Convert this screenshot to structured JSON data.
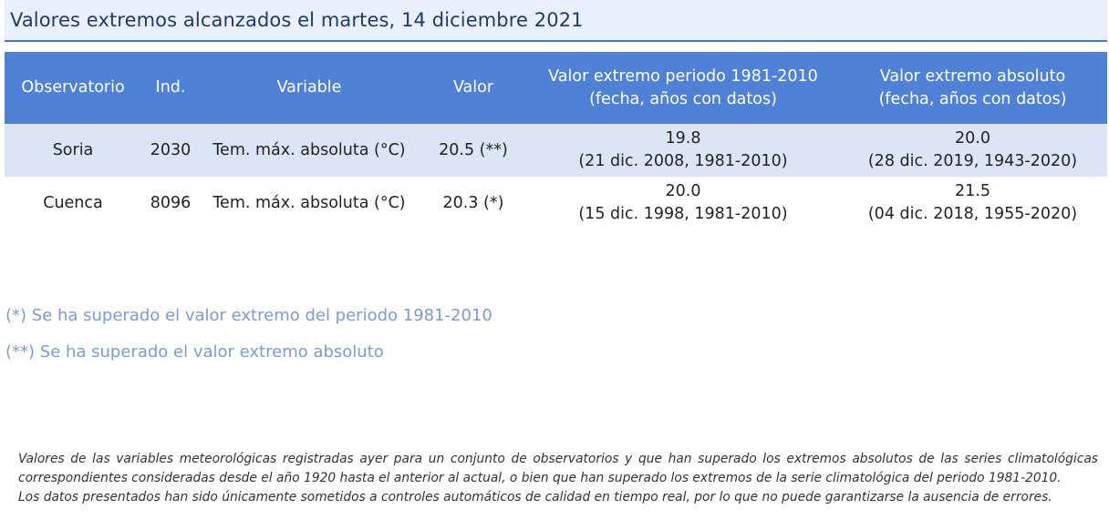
{
  "title": "Valores extremos alcanzados el martes, 14 diciembre 2021",
  "table": {
    "headers": {
      "observatorio": "Observatorio",
      "ind": "Ind.",
      "variable": "Variable",
      "valor": "Valor",
      "periodo_line1": "Valor extremo periodo 1981-2010",
      "periodo_line2": "(fecha, años con datos)",
      "absoluto_line1": "Valor extremo absoluto",
      "absoluto_line2": "(fecha, años con datos)"
    },
    "rows": [
      {
        "observatorio": "Soria",
        "ind": "2030",
        "variable": "Tem. máx. absoluta (°C)",
        "valor": "20.5 (**)",
        "periodo_valor": "19.8",
        "periodo_detalle": "(21 dic. 2008, 1981-2010)",
        "absoluto_valor": "20.0",
        "absoluto_detalle": "(28 dic. 2019, 1943-2020)"
      },
      {
        "observatorio": "Cuenca",
        "ind": "8096",
        "variable": "Tem. máx. absoluta (°C)",
        "valor": "20.3 (*)",
        "periodo_valor": "20.0",
        "periodo_detalle": "(15 dic. 1998, 1981-2010)",
        "absoluto_valor": "21.5",
        "absoluto_detalle": "(04 dic. 2018, 1955-2020)"
      }
    ]
  },
  "notes": {
    "single": "(*) Se ha superado el valor extremo del periodo 1981-2010",
    "double": "(**) Se ha superado el valor extremo absoluto"
  },
  "footnote": {
    "line1": "Valores de las variables meteorológicas registradas ayer para un conjunto de observatorios y que han superado los extremos absolutos de las series climatológicas correspondientes consideradas desde el año 1920 hasta el anterior al actual, o bien que han superado los extremos de la serie climatológica del periodo 1981-2010.",
    "line2": "Los datos presentados han sido únicamente sometidos a controles automáticos de calidad en tiempo real, por lo que no puede garantizarse la ausencia de errores."
  }
}
